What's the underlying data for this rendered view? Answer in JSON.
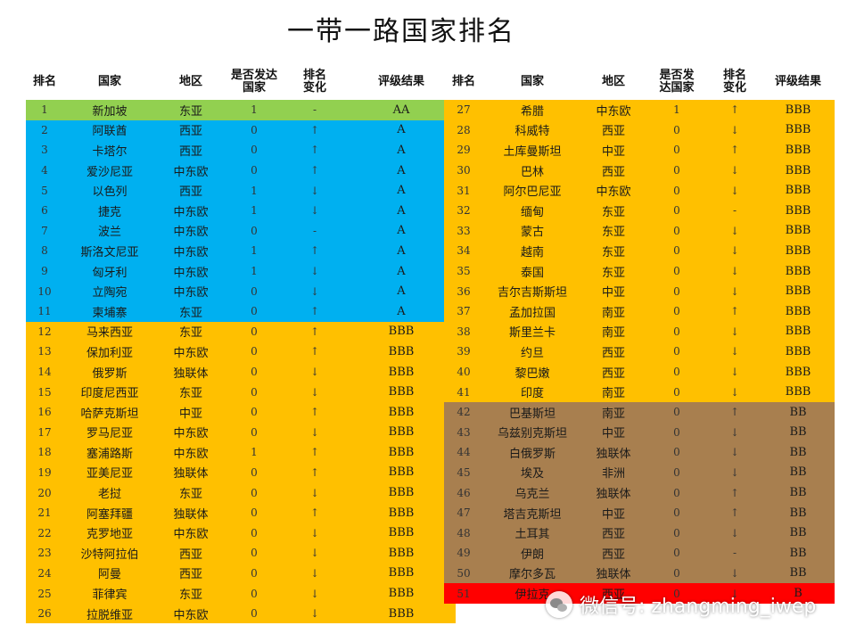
{
  "title": "一带一路国家排名",
  "headers": {
    "rank": "排名",
    "country": "国家",
    "region": "地区",
    "developed_l1": "是否发达",
    "developed_l2": "国家",
    "developed_r1": "是否发",
    "developed_r2": "达国家",
    "change_1": "排名",
    "change_2": "变化",
    "grade": "评级结果"
  },
  "colors": {
    "AA": "#92d050",
    "A": "#00b0f0",
    "BBB": "#ffc000",
    "BB": "#a87f4f",
    "B": "#ff0000"
  },
  "left_rows": [
    {
      "rank": "1",
      "country": "新加坡",
      "region": "东亚",
      "developed": "1",
      "change": "-",
      "grade": "AA"
    },
    {
      "rank": "2",
      "country": "阿联酋",
      "region": "西亚",
      "developed": "0",
      "change": "↑",
      "grade": "A"
    },
    {
      "rank": "3",
      "country": "卡塔尔",
      "region": "西亚",
      "developed": "0",
      "change": "↑",
      "grade": "A"
    },
    {
      "rank": "4",
      "country": "爱沙尼亚",
      "region": "中东欧",
      "developed": "0",
      "change": "↑",
      "grade": "A"
    },
    {
      "rank": "5",
      "country": "以色列",
      "region": "西亚",
      "developed": "1",
      "change": "↓",
      "grade": "A"
    },
    {
      "rank": "6",
      "country": "捷克",
      "region": "中东欧",
      "developed": "1",
      "change": "↓",
      "grade": "A"
    },
    {
      "rank": "7",
      "country": "波兰",
      "region": "中东欧",
      "developed": "0",
      "change": "-",
      "grade": "A"
    },
    {
      "rank": "8",
      "country": "斯洛文尼亚",
      "region": "中东欧",
      "developed": "1",
      "change": "↑",
      "grade": "A"
    },
    {
      "rank": "9",
      "country": "匈牙利",
      "region": "中东欧",
      "developed": "1",
      "change": "↓",
      "grade": "A"
    },
    {
      "rank": "10",
      "country": "立陶宛",
      "region": "中东欧",
      "developed": "0",
      "change": "↓",
      "grade": "A"
    },
    {
      "rank": "11",
      "country": "柬埔寨",
      "region": "东亚",
      "developed": "0",
      "change": "↑",
      "grade": "A"
    },
    {
      "rank": "12",
      "country": "马来西亚",
      "region": "东亚",
      "developed": "0",
      "change": "↑",
      "grade": "BBB"
    },
    {
      "rank": "13",
      "country": "保加利亚",
      "region": "中东欧",
      "developed": "0",
      "change": "↑",
      "grade": "BBB"
    },
    {
      "rank": "14",
      "country": "俄罗斯",
      "region": "独联体",
      "developed": "0",
      "change": "↓",
      "grade": "BBB"
    },
    {
      "rank": "15",
      "country": "印度尼西亚",
      "region": "东亚",
      "developed": "0",
      "change": "↓",
      "grade": "BBB"
    },
    {
      "rank": "16",
      "country": "哈萨克斯坦",
      "region": "中亚",
      "developed": "0",
      "change": "↑",
      "grade": "BBB"
    },
    {
      "rank": "17",
      "country": "罗马尼亚",
      "region": "中东欧",
      "developed": "0",
      "change": "↓",
      "grade": "BBB"
    },
    {
      "rank": "18",
      "country": "塞浦路斯",
      "region": "中东欧",
      "developed": "1",
      "change": "↑",
      "grade": "BBB"
    },
    {
      "rank": "19",
      "country": "亚美尼亚",
      "region": "独联体",
      "developed": "0",
      "change": "↑",
      "grade": "BBB"
    },
    {
      "rank": "20",
      "country": "老挝",
      "region": "东亚",
      "developed": "0",
      "change": "↓",
      "grade": "BBB"
    },
    {
      "rank": "21",
      "country": "阿塞拜疆",
      "region": "独联体",
      "developed": "0",
      "change": "↑",
      "grade": "BBB"
    },
    {
      "rank": "22",
      "country": "克罗地亚",
      "region": "中东欧",
      "developed": "0",
      "change": "↓",
      "grade": "BBB"
    },
    {
      "rank": "23",
      "country": "沙特阿拉伯",
      "region": "西亚",
      "developed": "0",
      "change": "↓",
      "grade": "BBB"
    },
    {
      "rank": "24",
      "country": "阿曼",
      "region": "西亚",
      "developed": "0",
      "change": "↓",
      "grade": "BBB"
    },
    {
      "rank": "25",
      "country": "菲律宾",
      "region": "东亚",
      "developed": "0",
      "change": "↓",
      "grade": "BBB"
    },
    {
      "rank": "26",
      "country": "拉脱维亚",
      "region": "中东欧",
      "developed": "0",
      "change": "↓",
      "grade": "BBB"
    }
  ],
  "right_rows": [
    {
      "rank": "27",
      "country": "希腊",
      "region": "中东欧",
      "developed": "1",
      "change": "↑",
      "grade": "BBB"
    },
    {
      "rank": "28",
      "country": "科威特",
      "region": "西亚",
      "developed": "0",
      "change": "↓",
      "grade": "BBB"
    },
    {
      "rank": "29",
      "country": "土库曼斯坦",
      "region": "中亚",
      "developed": "0",
      "change": "↑",
      "grade": "BBB"
    },
    {
      "rank": "30",
      "country": "巴林",
      "region": "西亚",
      "developed": "0",
      "change": "↓",
      "grade": "BBB"
    },
    {
      "rank": "31",
      "country": "阿尔巴尼亚",
      "region": "中东欧",
      "developed": "0",
      "change": "↓",
      "grade": "BBB"
    },
    {
      "rank": "32",
      "country": "缅甸",
      "region": "东亚",
      "developed": "0",
      "change": "-",
      "grade": "BBB"
    },
    {
      "rank": "33",
      "country": "蒙古",
      "region": "东亚",
      "developed": "0",
      "change": "↓",
      "grade": "BBB"
    },
    {
      "rank": "34",
      "country": "越南",
      "region": "东亚",
      "developed": "0",
      "change": "↓",
      "grade": "BBB"
    },
    {
      "rank": "35",
      "country": "泰国",
      "region": "东亚",
      "developed": "0",
      "change": "↓",
      "grade": "BBB"
    },
    {
      "rank": "36",
      "country": "吉尔吉斯斯坦",
      "region": "中亚",
      "developed": "0",
      "change": "↓",
      "grade": "BBB"
    },
    {
      "rank": "37",
      "country": "孟加拉国",
      "region": "南亚",
      "developed": "0",
      "change": "↑",
      "grade": "BBB"
    },
    {
      "rank": "38",
      "country": "斯里兰卡",
      "region": "南亚",
      "developed": "0",
      "change": "↓",
      "grade": "BBB"
    },
    {
      "rank": "39",
      "country": "约旦",
      "region": "西亚",
      "developed": "0",
      "change": "↓",
      "grade": "BBB"
    },
    {
      "rank": "40",
      "country": "黎巴嫩",
      "region": "西亚",
      "developed": "0",
      "change": "↓",
      "grade": "BBB"
    },
    {
      "rank": "41",
      "country": "印度",
      "region": "南亚",
      "developed": "0",
      "change": "↓",
      "grade": "BBB"
    },
    {
      "rank": "42",
      "country": "巴基斯坦",
      "region": "南亚",
      "developed": "0",
      "change": "↑",
      "grade": "BB"
    },
    {
      "rank": "43",
      "country": "乌兹别克斯坦",
      "region": "中亚",
      "developed": "0",
      "change": "↓",
      "grade": "BB"
    },
    {
      "rank": "44",
      "country": "白俄罗斯",
      "region": "独联体",
      "developed": "0",
      "change": "↓",
      "grade": "BB"
    },
    {
      "rank": "45",
      "country": "埃及",
      "region": "非洲",
      "developed": "0",
      "change": "↓",
      "grade": "BB"
    },
    {
      "rank": "46",
      "country": "乌克兰",
      "region": "独联体",
      "developed": "0",
      "change": "↑",
      "grade": "BB"
    },
    {
      "rank": "47",
      "country": "塔吉克斯坦",
      "region": "中亚",
      "developed": "0",
      "change": "↑",
      "grade": "BB"
    },
    {
      "rank": "48",
      "country": "土耳其",
      "region": "西亚",
      "developed": "0",
      "change": "↓",
      "grade": "BB"
    },
    {
      "rank": "49",
      "country": "伊朗",
      "region": "西亚",
      "developed": "0",
      "change": "-",
      "grade": "BB"
    },
    {
      "rank": "50",
      "country": "摩尔多瓦",
      "region": "独联体",
      "developed": "0",
      "change": "↓",
      "grade": "BB"
    },
    {
      "rank": "51",
      "country": "伊拉克",
      "region": "西亚",
      "developed": "0",
      "change": "↓",
      "grade": "B"
    }
  ],
  "watermark": "微信号: zhangming_iwep"
}
